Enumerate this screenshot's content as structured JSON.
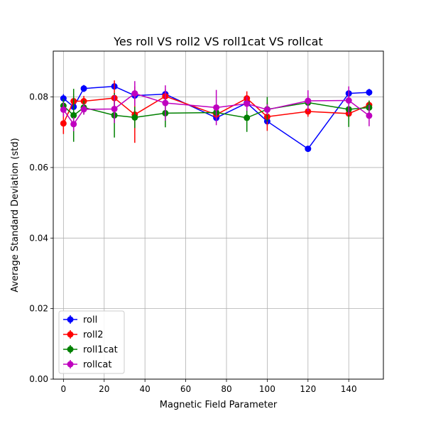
{
  "chart_data": {
    "type": "line",
    "title": "Yes roll VS roll2 VS roll1cat VS rollcat",
    "xlabel": "Magnetic Field Parameter",
    "ylabel": "Average Standard Deviation (std)",
    "xlim": [
      -5,
      157
    ],
    "ylim": [
      0,
      0.093
    ],
    "xticks": [
      0,
      20,
      40,
      60,
      80,
      100,
      120,
      140
    ],
    "xtick_labels": [
      "0",
      "20",
      "40",
      "60",
      "80",
      "100",
      "120",
      "140"
    ],
    "yticks": [
      0,
      0.02,
      0.04,
      0.06,
      0.08
    ],
    "ytick_labels": [
      "0.00",
      "0.02",
      "0.04",
      "0.06",
      "0.08"
    ],
    "grid": true,
    "legend_position": "lower-left",
    "series": [
      {
        "name": "roll",
        "color": "#0000ff",
        "x": [
          0,
          5,
          10,
          25,
          35,
          50,
          75,
          90,
          100,
          120,
          140,
          150
        ],
        "y": [
          0.0796,
          0.0772,
          0.0824,
          0.083,
          0.0804,
          0.0808,
          0.0741,
          0.0783,
          0.0731,
          0.0653,
          0.081,
          0.0813
        ],
        "err": [
          0.0012,
          0.0014,
          0.001,
          0.0008,
          0.001,
          0.001,
          0.001,
          0.001,
          0.0012,
          0.0008,
          0.001,
          0.001
        ]
      },
      {
        "name": "roll2",
        "color": "#ff0000",
        "x": [
          0,
          5,
          10,
          25,
          35,
          50,
          75,
          90,
          100,
          120,
          140,
          150
        ],
        "y": [
          0.0725,
          0.0788,
          0.0788,
          0.0797,
          0.075,
          0.0802,
          0.075,
          0.0796,
          0.0744,
          0.0759,
          0.0753,
          0.0777
        ],
        "err": [
          0.003,
          0.002,
          0.0015,
          0.005,
          0.008,
          0.002,
          0.0015,
          0.002,
          0.004,
          0.0015,
          0.0015,
          0.0012
        ]
      },
      {
        "name": "roll1cat",
        "color": "#008000",
        "x": [
          0,
          5,
          10,
          25,
          35,
          50,
          75,
          90,
          100,
          120,
          140,
          150
        ],
        "y": [
          0.0775,
          0.0748,
          0.077,
          0.0748,
          0.0742,
          0.0754,
          0.0756,
          0.0741,
          0.0765,
          0.0784,
          0.0765,
          0.077
        ],
        "err": [
          0.002,
          0.0075,
          0.002,
          0.0063,
          0.003,
          0.004,
          0.0015,
          0.004,
          0.0035,
          0.002,
          0.005,
          0.002
        ]
      },
      {
        "name": "rollcat",
        "color": "#bf00bf",
        "x": [
          0,
          5,
          10,
          25,
          35,
          50,
          75,
          90,
          100,
          120,
          140,
          150
        ],
        "y": [
          0.0764,
          0.0723,
          0.0765,
          0.0766,
          0.081,
          0.0783,
          0.077,
          0.0781,
          0.0764,
          0.0789,
          0.079,
          0.0747
        ],
        "err": [
          0.002,
          0.002,
          0.0015,
          0.004,
          0.0035,
          0.005,
          0.005,
          0.002,
          0.0015,
          0.003,
          0.004,
          0.003
        ]
      }
    ]
  }
}
